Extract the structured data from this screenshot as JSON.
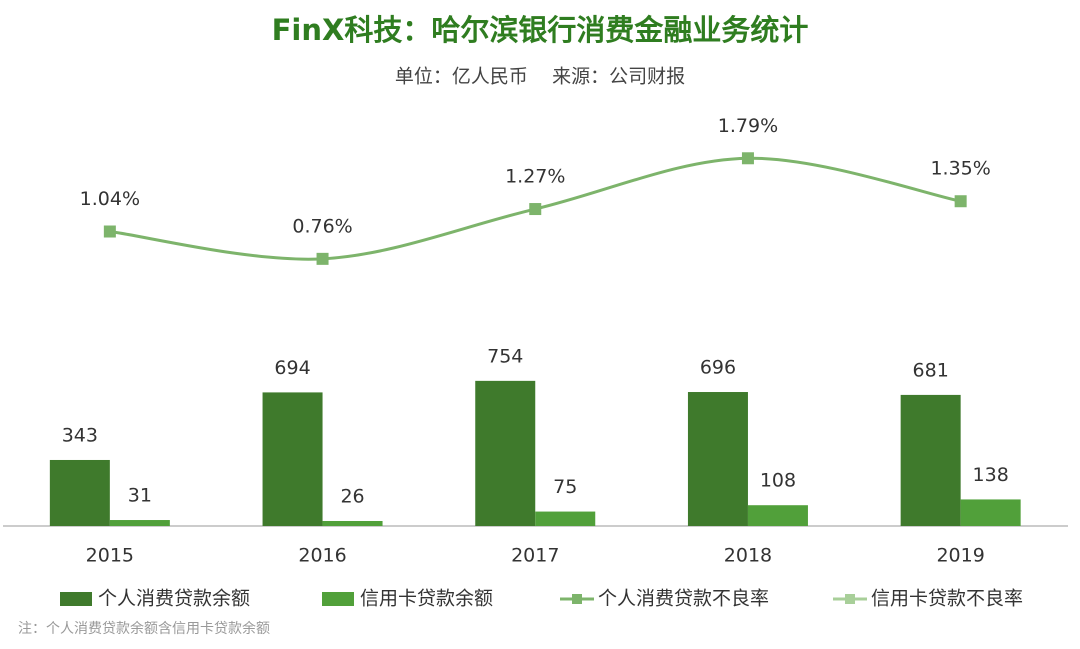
{
  "chart_data": {
    "type": "bar",
    "title": "FinX科技：哈尔滨银行消费金融业务统计",
    "subtitle": "单位：亿人民币    来源：公司财报",
    "note": "注：个人消费贷款余额含信用卡贷款余额",
    "categories": [
      "2015",
      "2016",
      "2017",
      "2018",
      "2019"
    ],
    "ylim": [
      0,
      800
    ],
    "y2lim": [
      0.4,
      2.1
    ],
    "series": [
      {
        "name": "个人消费贷款余额",
        "type": "bar",
        "color": "#3f7a2c",
        "values": [
          343,
          694,
          754,
          696,
          681
        ]
      },
      {
        "name": "信用卡贷款余额",
        "type": "bar",
        "color": "#51a03a",
        "values": [
          31,
          26,
          75,
          108,
          138
        ]
      },
      {
        "name": "个人消费贷款不良率",
        "type": "line",
        "axis": "y2",
        "color": "#7db46b",
        "values": [
          1.04,
          0.76,
          1.27,
          1.79,
          1.35
        ],
        "value_labels": [
          "1.04%",
          "0.76%",
          "1.27%",
          "1.79%",
          "1.35%"
        ]
      },
      {
        "name": "信用卡贷款不良率",
        "type": "line",
        "axis": "y2",
        "color": "#a8cf99",
        "values": [
          null,
          null,
          null,
          null,
          null
        ]
      }
    ]
  }
}
